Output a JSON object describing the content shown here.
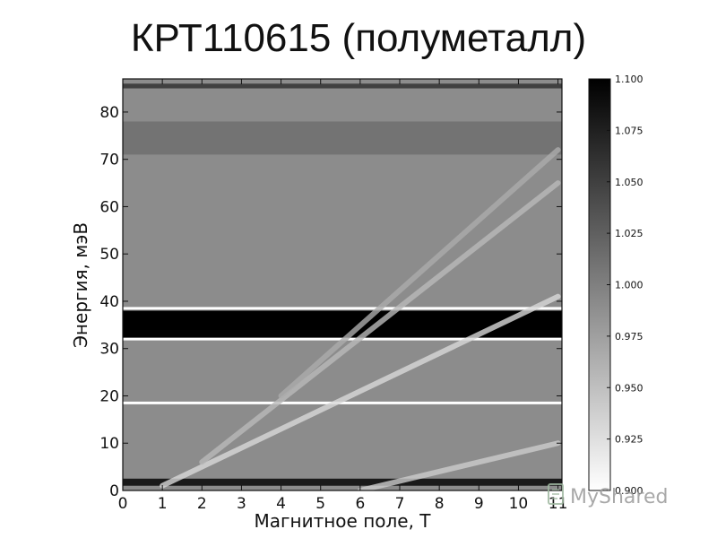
{
  "slide": {
    "title": "КРТ110615 (полуметалл)"
  },
  "watermark": {
    "text": "MyShared"
  },
  "chart_data": {
    "type": "heatmap",
    "title": "",
    "xlabel": "Магнитное поле, Т",
    "ylabel": "Энергия, мэВ",
    "xlim": [
      0,
      11.1
    ],
    "ylim": [
      0,
      87
    ],
    "x_ticks": [
      0,
      1,
      2,
      3,
      4,
      5,
      6,
      7,
      8,
      9,
      10,
      11
    ],
    "y_ticks": [
      0,
      10,
      20,
      30,
      40,
      50,
      60,
      70,
      80
    ],
    "colormap": "gray_r",
    "colorbar": {
      "min": 0.9,
      "max": 1.1,
      "ticks": [
        "0.900",
        "0.925",
        "0.950",
        "0.975",
        "1.000",
        "1.025",
        "1.050",
        "1.075",
        "1.100"
      ]
    },
    "background_level": 0.99,
    "features": [
      {
        "kind": "horizontal_band",
        "energy_range": [
          32,
          38
        ],
        "level": 1.1,
        "description": "dark band"
      },
      {
        "kind": "horizontal_line",
        "energy": 18.5,
        "level": 0.9
      },
      {
        "kind": "horizontal_line",
        "energy": 32,
        "level": 0.9
      },
      {
        "kind": "horizontal_line",
        "energy": 38.5,
        "level": 0.9
      },
      {
        "kind": "horizontal_band",
        "energy_range": [
          1,
          2.5
        ],
        "level": 1.08
      },
      {
        "kind": "horizontal_band",
        "energy_range": [
          85,
          86
        ],
        "level": 1.05
      },
      {
        "kind": "horizontal_band",
        "energy_range": [
          71,
          78
        ],
        "level": 1.01
      },
      {
        "kind": "bright_line",
        "points": [
          [
            1,
            1
          ],
          [
            11,
            41
          ]
        ],
        "level": 0.93
      },
      {
        "kind": "bright_line",
        "points": [
          [
            2,
            6
          ],
          [
            11,
            65
          ]
        ],
        "level": 0.955
      },
      {
        "kind": "bright_line",
        "points": [
          [
            4,
            20
          ],
          [
            11,
            72
          ]
        ],
        "level": 0.965
      },
      {
        "kind": "bright_line",
        "points": [
          [
            6,
            0
          ],
          [
            11,
            10
          ]
        ],
        "level": 0.94
      }
    ]
  }
}
